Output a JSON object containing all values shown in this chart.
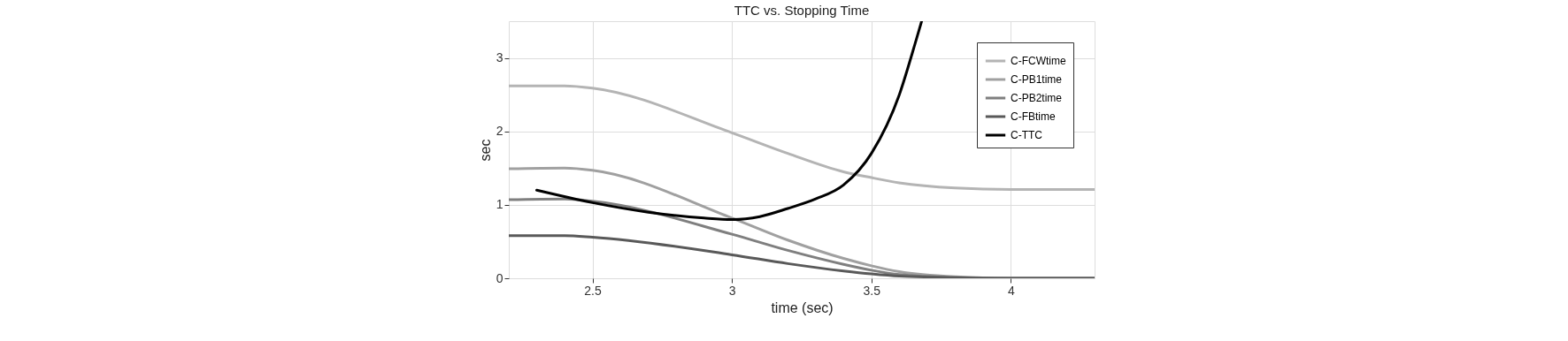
{
  "chart_data": {
    "type": "line",
    "title": "TTC vs. Stopping Time",
    "xlabel": "time (sec)",
    "ylabel": "sec",
    "xlim": [
      2.2,
      4.3
    ],
    "xticks": [
      {
        "value": 2.5,
        "label": "2.5"
      },
      3,
      {
        "value": 3.5,
        "label": "3.5"
      },
      4
    ],
    "ylim": [
      0,
      3.5
    ],
    "yticks": [
      0,
      1,
      2,
      3
    ],
    "grid": true,
    "legend": "top right",
    "line_style": "solid",
    "marker": "none",
    "series": [
      {
        "name": "C-FCWtime",
        "color": "#b4b4b4",
        "x": [
          2.2,
          2.4,
          2.5,
          3.0,
          3.2,
          3.4,
          3.5,
          3.6,
          3.8,
          4.0,
          4.3
        ],
        "values": [
          2.62,
          2.62,
          2.59,
          1.98,
          1.7,
          1.45,
          1.37,
          1.3,
          1.23,
          1.21,
          1.21
        ]
      },
      {
        "name": "C-PB1time",
        "color": "#a0a0a0",
        "x": [
          2.2,
          2.4,
          2.5,
          3.0,
          3.2,
          3.4,
          3.5,
          3.6,
          3.8,
          4.0,
          4.3
        ],
        "values": [
          1.49,
          1.5,
          1.47,
          0.82,
          0.52,
          0.27,
          0.17,
          0.09,
          0.02,
          0,
          0
        ]
      },
      {
        "name": "C-PB2time",
        "color": "#7f7f7f",
        "x": [
          2.2,
          2.4,
          2.5,
          3.0,
          3.2,
          3.4,
          3.5,
          3.6,
          3.8,
          4.0,
          4.3
        ],
        "values": [
          1.07,
          1.08,
          1.05,
          0.6,
          0.38,
          0.19,
          0.11,
          0.05,
          0.01,
          0,
          0
        ]
      },
      {
        "name": "C-FBtime",
        "color": "#595959",
        "x": [
          2.2,
          2.4,
          2.5,
          3.0,
          3.2,
          3.4,
          3.5,
          3.6,
          3.8,
          4.0,
          4.3
        ],
        "values": [
          0.58,
          0.58,
          0.56,
          0.32,
          0.2,
          0.1,
          0.06,
          0.03,
          0.01,
          0,
          0
        ]
      },
      {
        "name": "C-TTC",
        "color": "#000000",
        "x": [
          2.3,
          2.5,
          2.7,
          2.9,
          3.0,
          3.1,
          3.2,
          3.3,
          3.4,
          3.5,
          3.6,
          3.66,
          3.68
        ],
        "values": [
          1.2,
          1.03,
          0.9,
          0.82,
          0.8,
          0.84,
          0.95,
          1.08,
          1.27,
          1.7,
          2.5,
          3.24,
          3.5
        ]
      }
    ]
  }
}
